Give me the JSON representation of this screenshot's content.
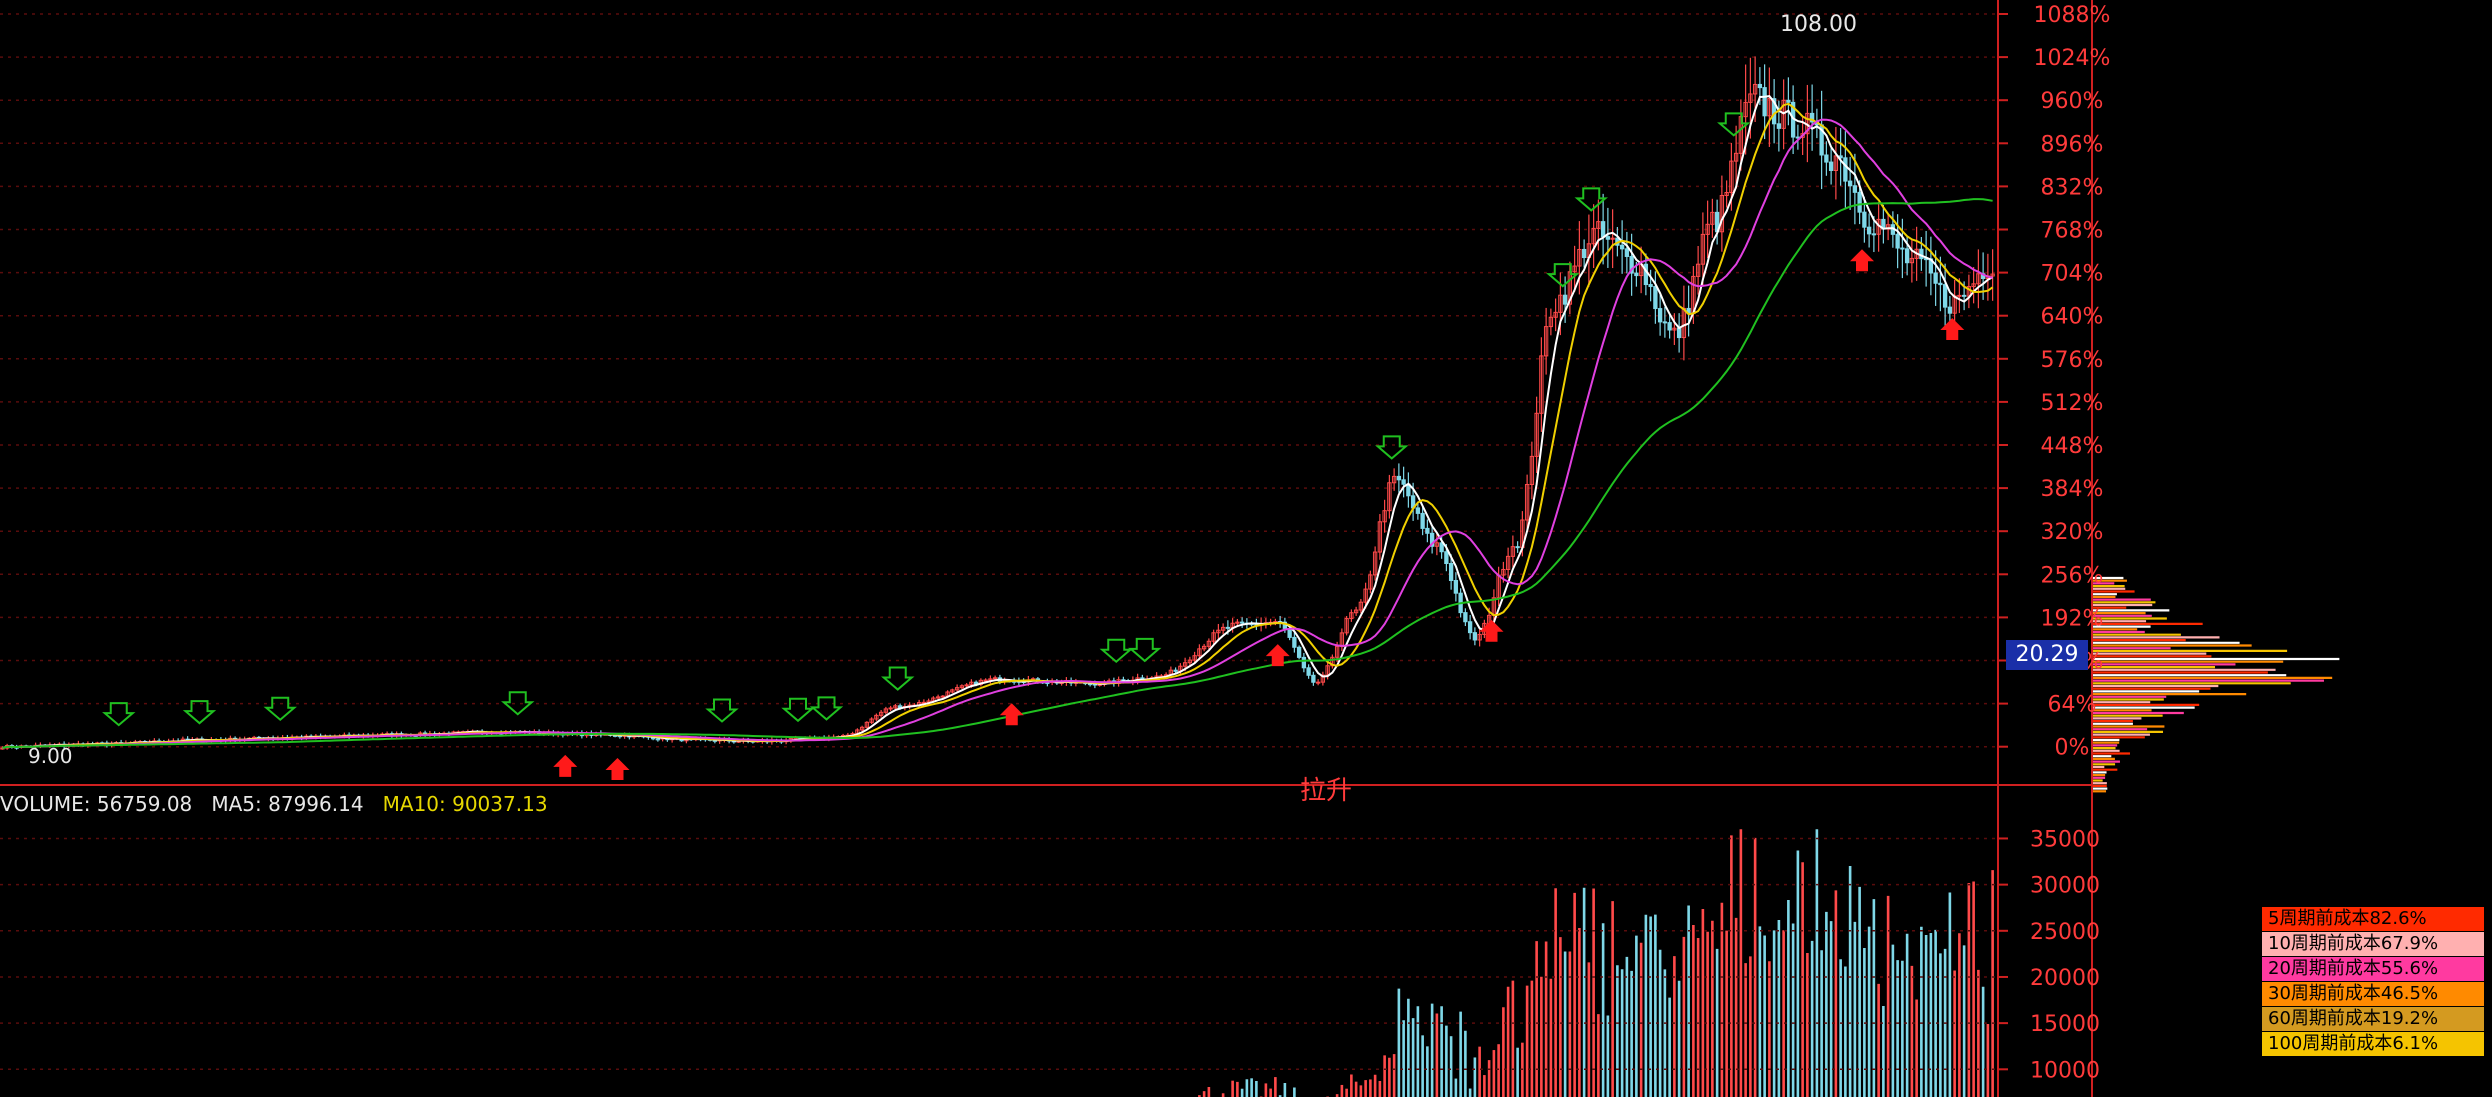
{
  "colors": {
    "background": "#000000",
    "axis": "#d02020",
    "grid": "#5a0c0c",
    "up": "#ff4a4a",
    "down": "#7fd8e8",
    "ma_white": "#ffffff",
    "ma_yellow": "#f0d000",
    "ma_magenta": "#e040e0",
    "ma_green": "#20c020"
  },
  "chart_data": [
    {
      "type": "candlestick",
      "title": "",
      "y_axis": "right",
      "y_ticks": [
        "1088%",
        "1024%",
        "960%",
        "896%",
        "832%",
        "768%",
        "704%",
        "640%",
        "576%",
        "512%",
        "448%",
        "384%",
        "320%",
        "256%",
        "192%",
        "128%",
        "64%",
        "0%"
      ],
      "ylim": [
        -20,
        1100
      ],
      "gridlines": true,
      "annotations": {
        "peak_label": "108.00",
        "start_label": "9.00",
        "current_price": "20.29",
        "marker_text": "拉升"
      },
      "buy_arrows_x": [
        0.285,
        0.31,
        0.508,
        0.642,
        0.75,
        0.935,
        0.98
      ],
      "sell_arrows_x": [
        0.06,
        0.1,
        0.14,
        0.26,
        0.362,
        0.4,
        0.415,
        0.45,
        0.56,
        0.575,
        0.7,
        0.785,
        0.8,
        0.87
      ]
    },
    {
      "type": "bar",
      "title": "",
      "indicator": "VOLUME",
      "header": {
        "volume_label": "VOLUME: 56759.08",
        "ma5_label": "MA5: 87996.14",
        "ma10_label": "MA10: 90037.13"
      },
      "y_ticks": [
        "35000",
        "30000",
        "25000",
        "20000",
        "15000",
        "10000"
      ],
      "ylim": [
        7000,
        37000
      ]
    }
  ],
  "chip_legend": [
    {
      "label": "5周期前成本82.6%",
      "color": "#ff2a00"
    },
    {
      "label": "10周期前成本67.9%",
      "color": "#ffb0b0"
    },
    {
      "label": "20周期前成本55.6%",
      "color": "#ff3aa0"
    },
    {
      "label": "30周期前成本46.5%",
      "color": "#ff8a00"
    },
    {
      "label": "60周期前成本19.2%",
      "color": "#d49a20"
    },
    {
      "label": "100周期前成本6.1%",
      "color": "#f5c400"
    }
  ]
}
